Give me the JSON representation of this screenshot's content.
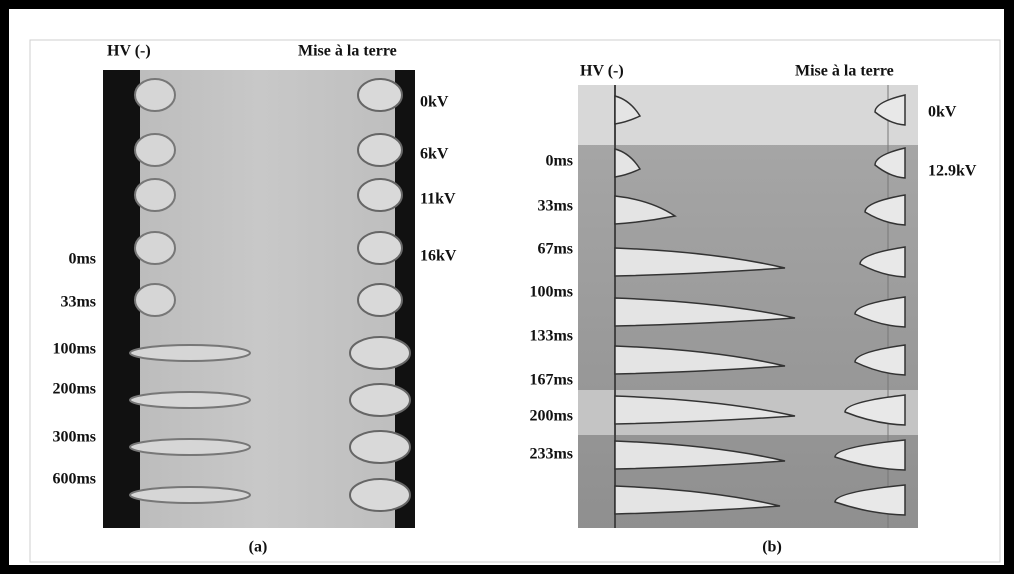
{
  "panel_a": {
    "electrode_left": "HV (-)",
    "electrode_right": "Mise à la terre",
    "voltages": [
      "0kV",
      "6kV",
      "11kV",
      "16kV"
    ],
    "times": [
      "0ms",
      "33ms",
      "100ms",
      "200ms",
      "300ms",
      "600ms"
    ],
    "caption": "(a)"
  },
  "panel_b": {
    "electrode_left": "HV (-)",
    "electrode_right": "Mise à la terre",
    "voltages": [
      "0kV",
      "12.9kV"
    ],
    "times": [
      "0ms",
      "33ms",
      "67ms",
      "100ms",
      "133ms",
      "167ms",
      "200ms",
      "233ms"
    ],
    "caption": "(b)"
  }
}
